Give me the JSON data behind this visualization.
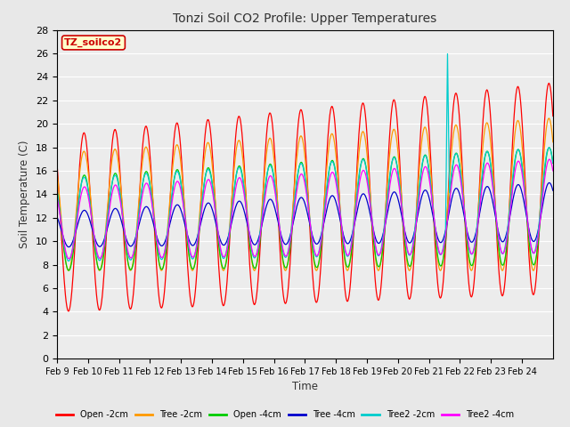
{
  "title": "Tonzi Soil CO2 Profile: Upper Temperatures",
  "ylabel": "Soil Temperature (C)",
  "xlabel": "Time",
  "ylim": [
    0,
    28
  ],
  "series_names": [
    "Open -2cm",
    "Tree -2cm",
    "Open -4cm",
    "Tree -4cm",
    "Tree2 -2cm",
    "Tree2 -4cm"
  ],
  "series_colors": [
    "#ff0000",
    "#ff9900",
    "#00cc00",
    "#0000cc",
    "#00cccc",
    "#ff00ff"
  ],
  "x_tick_labels": [
    "Feb 9",
    "Feb 10",
    "Feb 11",
    "Feb 12",
    "Feb 13",
    "Feb 14",
    "Feb 15",
    "Feb 16",
    "Feb 17",
    "Feb 18",
    "Feb 19",
    "Feb 20",
    "Feb 21",
    "Feb 22",
    "Feb 23",
    "Feb 24"
  ],
  "inset_label": "TZ_soilco2",
  "inset_text_color": "#cc0000",
  "inset_bg_color": "#ffffcc",
  "inset_edge_color": "#cc0000",
  "background_color": "#e8e8e8",
  "plot_bg_color": "#ececec",
  "grid_color": "#ffffff",
  "title_color": "#333333",
  "n_days": 16,
  "hours_per_day": 48
}
